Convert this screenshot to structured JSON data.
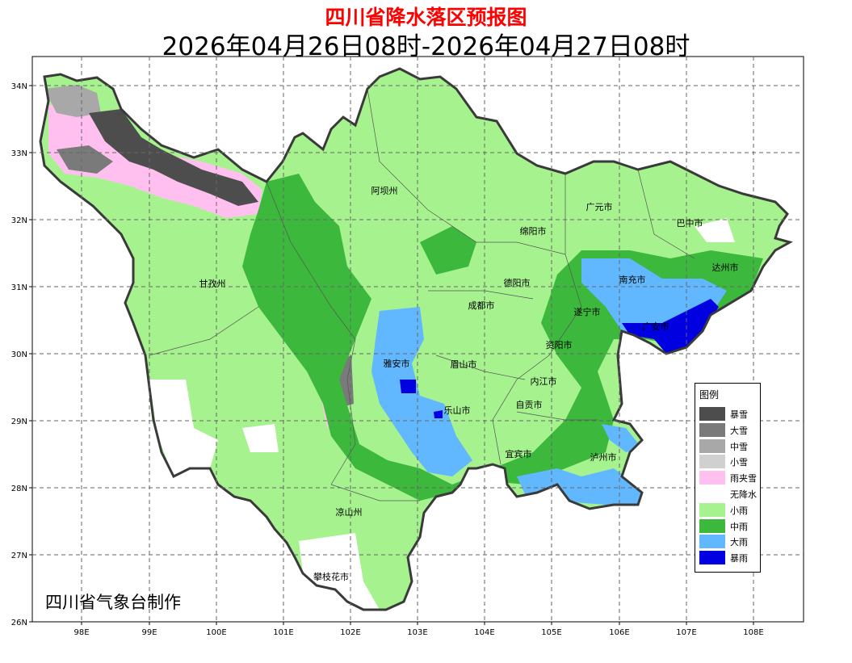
{
  "title": "四川省降水落区预报图",
  "subtitle": "2026年04月26日08时-2026年04月27日08时",
  "credit": "四川省气象台制作",
  "axes": {
    "x_ticks": [
      "98E",
      "99E",
      "100E",
      "101E",
      "102E",
      "103E",
      "104E",
      "105E",
      "106E",
      "107E",
      "108E"
    ],
    "y_ticks": [
      "34N",
      "33N",
      "32N",
      "31N",
      "30N",
      "29N",
      "28N",
      "27N",
      "26N"
    ],
    "grid": true
  },
  "cities": [
    {
      "name": "阿坝州"
    },
    {
      "name": "甘孜州"
    },
    {
      "name": "广元市"
    },
    {
      "name": "巴中市"
    },
    {
      "name": "绵阳市"
    },
    {
      "name": "达州市"
    },
    {
      "name": "南充市"
    },
    {
      "name": "德阳市"
    },
    {
      "name": "成都市"
    },
    {
      "name": "遂宁市"
    },
    {
      "name": "广安市"
    },
    {
      "name": "资阳市"
    },
    {
      "name": "雅安市"
    },
    {
      "name": "眉山市"
    },
    {
      "name": "内江市"
    },
    {
      "name": "乐山市"
    },
    {
      "name": "自贡市"
    },
    {
      "name": "宜宾市"
    },
    {
      "name": "泸州市"
    },
    {
      "name": "凉山州"
    },
    {
      "name": "攀枝花市"
    }
  ],
  "legend": {
    "title": "图例",
    "items": [
      {
        "label": "暴雪",
        "color": "#4d4d4d"
      },
      {
        "label": "大雪",
        "color": "#7a7a7a"
      },
      {
        "label": "中雪",
        "color": "#a8a8a8"
      },
      {
        "label": "小雪",
        "color": "#d0d0d0"
      },
      {
        "label": "雨夹雪",
        "color": "#ffc0f0"
      },
      {
        "label": "无降水",
        "color": "#ffffff"
      },
      {
        "label": "小雨",
        "color": "#a6f28f"
      },
      {
        "label": "中雨",
        "color": "#3cb83c"
      },
      {
        "label": "大雨",
        "color": "#61b8ff"
      },
      {
        "label": "暴雨",
        "color": "#0000e0"
      }
    ]
  }
}
